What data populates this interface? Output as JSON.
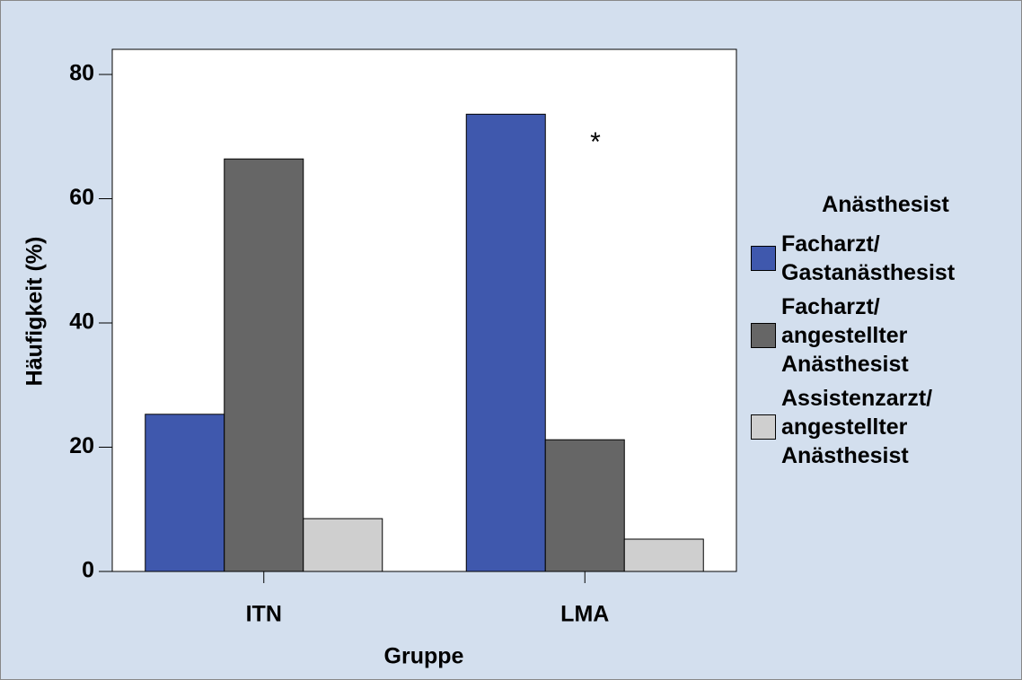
{
  "chart_data": {
    "type": "bar",
    "categories": [
      "ITN",
      "LMA"
    ],
    "series": [
      {
        "name": "Facharzt/ Gastanästhesist",
        "color": "#3f58ad",
        "values": [
          25.3,
          73.6
        ]
      },
      {
        "name": "Facharzt/ angestellter Anästhesist",
        "color": "#666666",
        "values": [
          66.4,
          21.2
        ]
      },
      {
        "name": "Assistenzarzt/ angestellter Anästhesist",
        "color": "#cfcfcf",
        "values": [
          8.5,
          5.2
        ]
      }
    ],
    "xlabel": "Gruppe",
    "ylabel": "Häufigkeit (%)",
    "legend_title": "Anästhesist",
    "annotation": "*",
    "ylim": [
      0,
      80
    ],
    "yticks": [
      0,
      20,
      40,
      60,
      80
    ],
    "grid": false
  }
}
